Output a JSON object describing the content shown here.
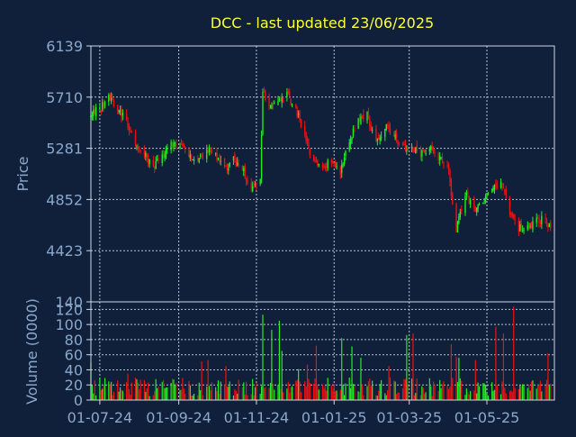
{
  "title": "DCC - last updated 23/06/2025",
  "colors": {
    "background": "#11203a",
    "title": "#ffff33",
    "axis_text": "#8aa8cc",
    "frame": "#cfd8e3",
    "grid": "#b8c4d2",
    "up": "#22ee22",
    "down": "#ee1111"
  },
  "chart_data": [
    {
      "type": "candlestick",
      "title": "DCC - last updated 23/06/2025",
      "ylabel": "Price",
      "ylim": [
        140,
        6139
      ],
      "yticks": [
        6139,
        5710,
        5281,
        4852,
        4423,
        140
      ],
      "grid": true,
      "date_start": "2024-06-24",
      "date_end": "2025-06-23",
      "xtick_labels": [
        "01-07-24",
        "01-09-24",
        "01-11-24",
        "01-01-25",
        "01-03-25",
        "01-05-25"
      ],
      "xtick_dates": [
        "2024-07-01",
        "2024-09-01",
        "2024-11-01",
        "2025-01-01",
        "2025-03-01",
        "2025-05-01"
      ],
      "close_trend": [
        [
          "2024-06-24",
          5560
        ],
        [
          "2024-07-01",
          5620
        ],
        [
          "2024-07-08",
          5700
        ],
        [
          "2024-07-15",
          5620
        ],
        [
          "2024-07-22",
          5500
        ],
        [
          "2024-07-29",
          5340
        ],
        [
          "2024-08-05",
          5230
        ],
        [
          "2024-08-12",
          5130
        ],
        [
          "2024-08-19",
          5200
        ],
        [
          "2024-08-26",
          5310
        ],
        [
          "2024-09-02",
          5320
        ],
        [
          "2024-09-09",
          5230
        ],
        [
          "2024-09-16",
          5170
        ],
        [
          "2024-09-23",
          5260
        ],
        [
          "2024-09-30",
          5230
        ],
        [
          "2024-10-07",
          5110
        ],
        [
          "2024-10-14",
          5180
        ],
        [
          "2024-10-21",
          5110
        ],
        [
          "2024-10-28",
          4940
        ],
        [
          "2024-11-04",
          5020
        ],
        [
          "2024-11-06",
          5780
        ],
        [
          "2024-11-11",
          5620
        ],
        [
          "2024-11-18",
          5700
        ],
        [
          "2024-11-25",
          5730
        ],
        [
          "2024-12-02",
          5600
        ],
        [
          "2024-12-09",
          5400
        ],
        [
          "2024-12-16",
          5150
        ],
        [
          "2024-12-23",
          5130
        ],
        [
          "2024-12-30",
          5180
        ],
        [
          "2025-01-06",
          5070
        ],
        [
          "2025-01-13",
          5360
        ],
        [
          "2025-01-20",
          5500
        ],
        [
          "2025-01-27",
          5560
        ],
        [
          "2025-02-03",
          5330
        ],
        [
          "2025-02-10",
          5460
        ],
        [
          "2025-02-17",
          5380
        ],
        [
          "2025-02-24",
          5300
        ],
        [
          "2025-03-03",
          5280
        ],
        [
          "2025-03-10",
          5230
        ],
        [
          "2025-03-17",
          5300
        ],
        [
          "2025-03-24",
          5200
        ],
        [
          "2025-03-31",
          5150
        ],
        [
          "2025-04-07",
          4590
        ],
        [
          "2025-04-14",
          4900
        ],
        [
          "2025-04-21",
          4770
        ],
        [
          "2025-04-28",
          4830
        ],
        [
          "2025-05-05",
          4930
        ],
        [
          "2025-05-12",
          5020
        ],
        [
          "2025-05-19",
          4760
        ],
        [
          "2025-05-26",
          4610
        ],
        [
          "2025-06-02",
          4610
        ],
        [
          "2025-06-09",
          4680
        ],
        [
          "2025-06-16",
          4680
        ],
        [
          "2025-06-23",
          4570
        ]
      ]
    },
    {
      "type": "bar",
      "ylabel": "Volume (0000)",
      "ylim": [
        0,
        130
      ],
      "yticks": [
        0,
        20,
        40,
        60,
        80,
        100,
        120
      ],
      "grid": true,
      "typical_range": [
        5,
        30
      ],
      "spikes": [
        [
          "2024-06-24",
          49
        ],
        [
          "2024-07-23",
          35
        ],
        [
          "2024-09-19",
          51
        ],
        [
          "2024-09-24",
          53
        ],
        [
          "2024-10-08",
          45
        ],
        [
          "2024-11-06",
          113
        ],
        [
          "2024-11-13",
          93
        ],
        [
          "2024-11-19",
          105
        ],
        [
          "2024-11-21",
          65
        ],
        [
          "2024-12-04",
          41
        ],
        [
          "2024-12-11",
          47
        ],
        [
          "2024-12-18",
          72
        ],
        [
          "2025-01-07",
          82
        ],
        [
          "2025-01-15",
          71
        ],
        [
          "2025-01-22",
          56
        ],
        [
          "2025-02-13",
          45
        ],
        [
          "2025-02-27",
          86
        ],
        [
          "2025-03-04",
          88
        ],
        [
          "2025-04-03",
          74
        ],
        [
          "2025-04-07",
          57
        ],
        [
          "2025-04-09",
          56
        ],
        [
          "2025-04-22",
          53
        ],
        [
          "2025-05-08",
          97
        ],
        [
          "2025-05-14",
          88
        ],
        [
          "2025-05-22",
          124
        ],
        [
          "2025-06-18",
          62
        ]
      ]
    }
  ]
}
